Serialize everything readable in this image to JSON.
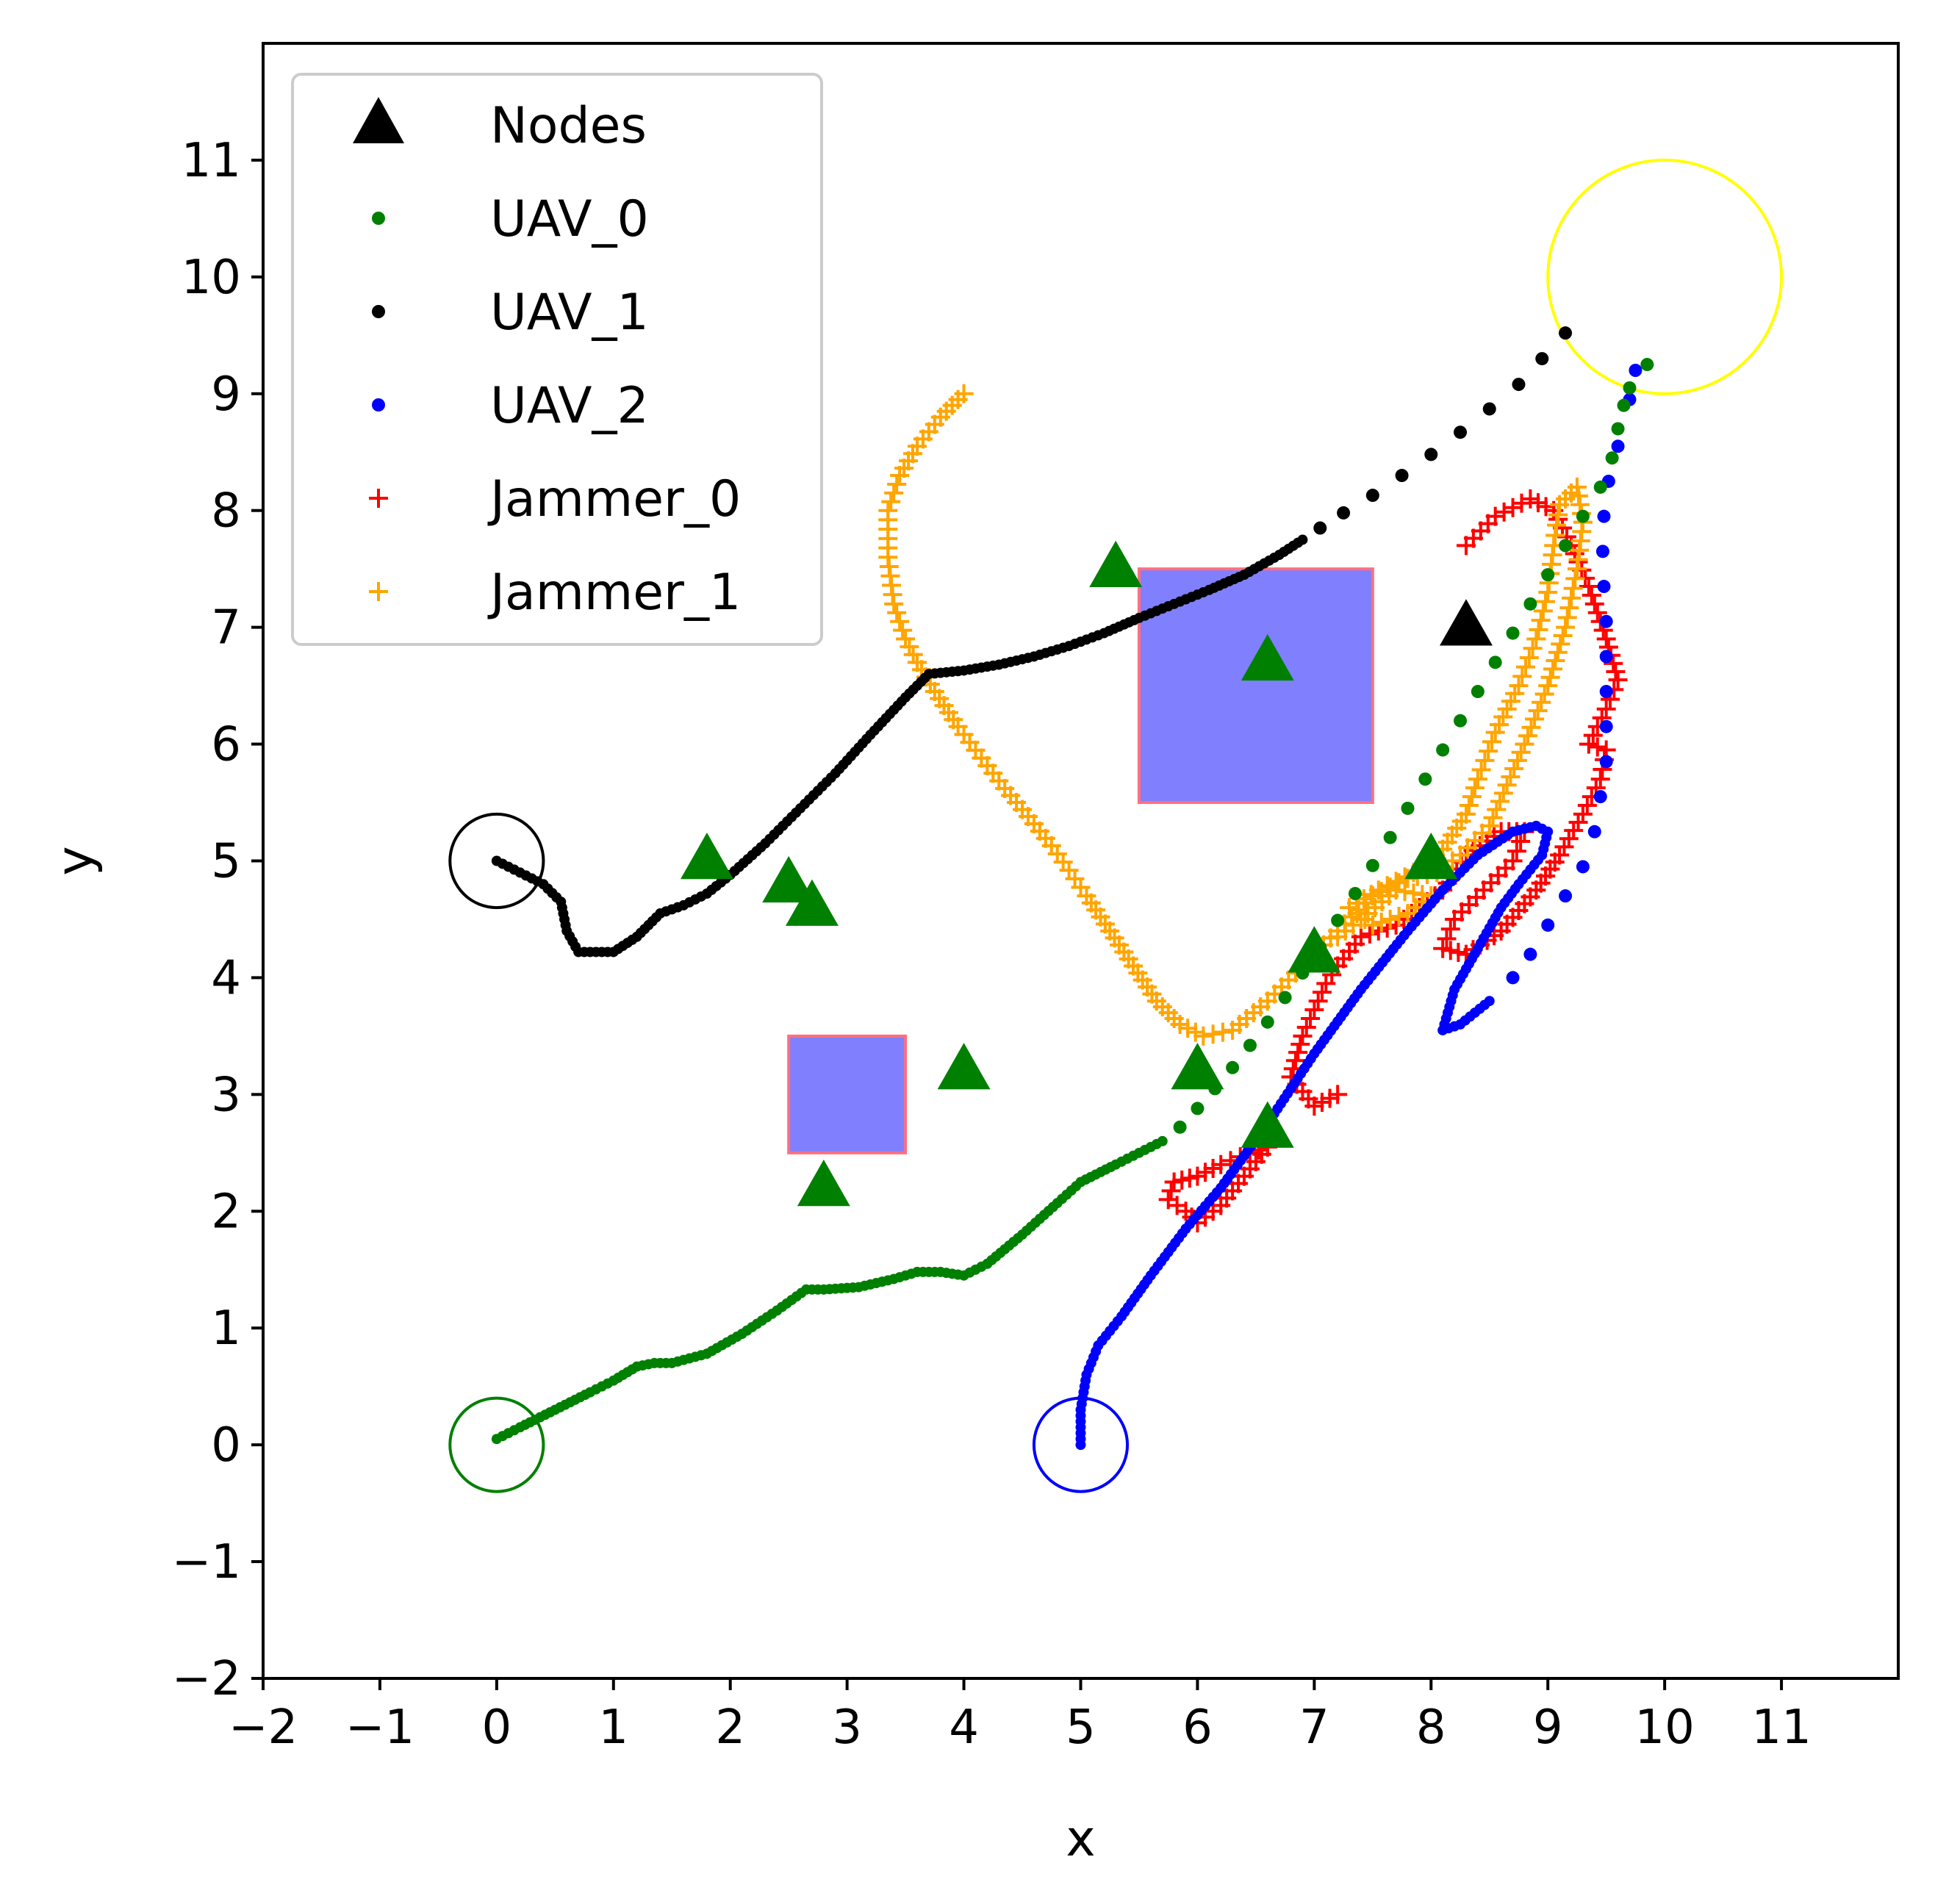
{
  "chart_data": {
    "type": "scatter",
    "title": "",
    "xlabel": "x",
    "ylabel": "y",
    "xlim": [
      -2,
      12
    ],
    "ylim": [
      -2,
      12
    ],
    "xticks": [
      -2,
      -1,
      0,
      1,
      2,
      3,
      4,
      5,
      6,
      7,
      8,
      9,
      10,
      11
    ],
    "yticks": [
      -2,
      -1,
      0,
      1,
      2,
      3,
      4,
      5,
      6,
      7,
      8,
      9,
      10,
      11
    ],
    "xtick_labels": [
      "−2",
      "−1",
      "0",
      "1",
      "2",
      "3",
      "4",
      "5",
      "6",
      "7",
      "8",
      "9",
      "10",
      "11"
    ],
    "ytick_labels": [
      "−2",
      "−1",
      "0",
      "1",
      "2",
      "3",
      "4",
      "5",
      "6",
      "7",
      "8",
      "9",
      "10",
      "11"
    ],
    "grid": false,
    "legend_position": "top-left",
    "legend": [
      {
        "label": "Nodes",
        "marker": "triangle",
        "color": "#000000"
      },
      {
        "label": "UAV_0",
        "marker": "dot",
        "color": "#008000"
      },
      {
        "label": "UAV_1",
        "marker": "dot",
        "color": "#000000"
      },
      {
        "label": "UAV_2",
        "marker": "dot",
        "color": "#0000ff"
      },
      {
        "label": "Jammer_0",
        "marker": "plus",
        "color": "#ff0000"
      },
      {
        "label": "Jammer_1",
        "marker": "plus",
        "color": "#ffa500"
      }
    ],
    "nodes": {
      "green": [
        [
          1.8,
          5.0
        ],
        [
          2.5,
          4.8
        ],
        [
          2.7,
          4.6
        ],
        [
          5.3,
          7.5
        ],
        [
          6.6,
          6.7
        ],
        [
          4.0,
          3.2
        ],
        [
          2.8,
          2.2
        ],
        [
          6.0,
          3.2
        ],
        [
          6.6,
          2.7
        ],
        [
          7.0,
          4.2
        ],
        [
          8.0,
          5.0
        ]
      ],
      "black": [
        [
          8.3,
          7.0
        ]
      ],
      "colors": {
        "green": "#008000",
        "black": "#000000"
      }
    },
    "obstacles": [
      {
        "x": [
          5.5,
          7.5
        ],
        "y": [
          5.5,
          7.5
        ],
        "fill": "#8080ff",
        "edge": "#ff6f7f"
      },
      {
        "x": [
          2.5,
          3.5
        ],
        "y": [
          2.5,
          3.5
        ],
        "fill": "#8080ff",
        "edge": "#ff6f7f"
      }
    ],
    "start_circles": [
      {
        "center": [
          0,
          5
        ],
        "radius": 0.4,
        "color": "#000000"
      },
      {
        "center": [
          0,
          0
        ],
        "radius": 0.4,
        "color": "#008000"
      },
      {
        "center": [
          5,
          0
        ],
        "radius": 0.4,
        "color": "#0000ff"
      }
    ],
    "goal_circle": {
      "center": [
        10,
        10
      ],
      "radius": 1.0,
      "color": "#ffff00"
    },
    "series": [
      {
        "name": "UAV_0",
        "marker": "dot",
        "color": "#008000",
        "path": [
          [
            0,
            0.05
          ],
          [
            0.2,
            0.15
          ],
          [
            0.5,
            0.3
          ],
          [
            0.8,
            0.45
          ],
          [
            1.0,
            0.55
          ],
          [
            1.2,
            0.67
          ],
          [
            1.35,
            0.7
          ],
          [
            1.5,
            0.7
          ],
          [
            1.8,
            0.78
          ],
          [
            2.1,
            0.95
          ],
          [
            2.4,
            1.15
          ],
          [
            2.65,
            1.33
          ],
          [
            2.8,
            1.33
          ],
          [
            3.1,
            1.35
          ],
          [
            3.4,
            1.42
          ],
          [
            3.6,
            1.48
          ],
          [
            3.8,
            1.48
          ],
          [
            4.0,
            1.45
          ],
          [
            4.2,
            1.55
          ],
          [
            4.5,
            1.8
          ],
          [
            4.8,
            2.07
          ],
          [
            5.0,
            2.25
          ],
          [
            5.3,
            2.4
          ],
          [
            5.5,
            2.5
          ],
          [
            5.7,
            2.6
          ]
        ],
        "sparse": [
          [
            5.85,
            2.72
          ],
          [
            6.0,
            2.88
          ],
          [
            6.15,
            3.05
          ],
          [
            6.3,
            3.23
          ],
          [
            6.45,
            3.42
          ],
          [
            6.6,
            3.62
          ],
          [
            6.75,
            3.83
          ],
          [
            6.9,
            4.04
          ],
          [
            7.05,
            4.26
          ],
          [
            7.2,
            4.49
          ],
          [
            7.35,
            4.72
          ],
          [
            7.5,
            4.96
          ],
          [
            7.65,
            5.2
          ],
          [
            7.8,
            5.45
          ],
          [
            7.95,
            5.7
          ],
          [
            8.1,
            5.95
          ],
          [
            8.25,
            6.2
          ],
          [
            8.4,
            6.45
          ],
          [
            8.55,
            6.7
          ],
          [
            8.7,
            6.95
          ],
          [
            8.85,
            7.2
          ],
          [
            9.0,
            7.45
          ],
          [
            9.15,
            7.7
          ],
          [
            9.3,
            7.95
          ],
          [
            9.45,
            8.2
          ],
          [
            9.55,
            8.45
          ],
          [
            9.6,
            8.7
          ],
          [
            9.65,
            8.9
          ],
          [
            9.7,
            9.05
          ],
          [
            9.85,
            9.25
          ]
        ]
      },
      {
        "name": "UAV_1",
        "marker": "dot",
        "color": "#000000",
        "path": [
          [
            0,
            5.0
          ],
          [
            0.2,
            4.9
          ],
          [
            0.4,
            4.8
          ],
          [
            0.55,
            4.65
          ],
          [
            0.6,
            4.4
          ],
          [
            0.7,
            4.22
          ],
          [
            1.0,
            4.22
          ],
          [
            1.2,
            4.35
          ],
          [
            1.4,
            4.55
          ],
          [
            1.6,
            4.62
          ],
          [
            1.8,
            4.72
          ],
          [
            2.0,
            4.88
          ],
          [
            2.3,
            5.15
          ],
          [
            2.6,
            5.45
          ],
          [
            2.9,
            5.75
          ],
          [
            3.2,
            6.08
          ],
          [
            3.5,
            6.4
          ],
          [
            3.7,
            6.6
          ],
          [
            4.0,
            6.63
          ],
          [
            4.3,
            6.68
          ],
          [
            4.6,
            6.75
          ],
          [
            4.9,
            6.84
          ],
          [
            5.2,
            6.95
          ],
          [
            5.5,
            7.08
          ],
          [
            5.8,
            7.2
          ],
          [
            6.1,
            7.32
          ],
          [
            6.4,
            7.45
          ],
          [
            6.7,
            7.62
          ],
          [
            6.9,
            7.75
          ]
        ],
        "sparse": [
          [
            7.05,
            7.85
          ],
          [
            7.25,
            7.98
          ],
          [
            7.5,
            8.13
          ],
          [
            7.75,
            8.3
          ],
          [
            8.0,
            8.48
          ],
          [
            8.25,
            8.67
          ],
          [
            8.5,
            8.87
          ],
          [
            8.75,
            9.08
          ],
          [
            8.95,
            9.3
          ],
          [
            9.15,
            9.52
          ]
        ]
      },
      {
        "name": "UAV_2",
        "marker": "dot",
        "color": "#0000ff",
        "path": [
          [
            5.0,
            0.0
          ],
          [
            5.0,
            0.3
          ],
          [
            5.05,
            0.6
          ],
          [
            5.15,
            0.85
          ],
          [
            5.35,
            1.1
          ],
          [
            5.6,
            1.45
          ],
          [
            5.9,
            1.85
          ],
          [
            6.2,
            2.2
          ],
          [
            6.6,
            2.75
          ],
          [
            7.0,
            3.35
          ],
          [
            7.4,
            3.9
          ],
          [
            7.8,
            4.4
          ],
          [
            8.1,
            4.75
          ],
          [
            8.4,
            5.05
          ],
          [
            8.7,
            5.25
          ],
          [
            8.9,
            5.3
          ],
          [
            9.0,
            5.25
          ],
          [
            8.95,
            5.05
          ],
          [
            8.75,
            4.8
          ],
          [
            8.6,
            4.6
          ],
          [
            8.4,
            4.25
          ],
          [
            8.2,
            3.9
          ],
          [
            8.1,
            3.55
          ],
          [
            8.25,
            3.6
          ],
          [
            8.5,
            3.8
          ]
        ],
        "sparse": [
          [
            8.7,
            4.0
          ],
          [
            8.85,
            4.2
          ],
          [
            9.0,
            4.45
          ],
          [
            9.15,
            4.7
          ],
          [
            9.3,
            4.95
          ],
          [
            9.4,
            5.25
          ],
          [
            9.45,
            5.55
          ],
          [
            9.5,
            5.85
          ],
          [
            9.5,
            6.15
          ],
          [
            9.5,
            6.45
          ],
          [
            9.5,
            6.75
          ],
          [
            9.5,
            7.05
          ],
          [
            9.48,
            7.35
          ],
          [
            9.47,
            7.65
          ],
          [
            9.48,
            7.95
          ],
          [
            9.52,
            8.25
          ],
          [
            9.6,
            8.55
          ],
          [
            9.7,
            8.95
          ],
          [
            9.75,
            9.2
          ]
        ]
      },
      {
        "name": "Jammer_0",
        "marker": "plus",
        "color": "#ff0000",
        "path": [
          [
            7.2,
            3.0
          ],
          [
            7.0,
            2.9
          ],
          [
            6.8,
            3.15
          ],
          [
            6.9,
            3.5
          ],
          [
            7.1,
            3.95
          ],
          [
            7.2,
            4.1
          ],
          [
            7.4,
            4.35
          ],
          [
            7.7,
            4.45
          ],
          [
            7.9,
            4.6
          ],
          [
            8.1,
            4.75
          ],
          [
            8.3,
            5.05
          ],
          [
            8.6,
            5.25
          ],
          [
            8.8,
            5.25
          ],
          [
            8.7,
            5.0
          ],
          [
            8.45,
            4.75
          ],
          [
            8.2,
            4.5
          ],
          [
            8.1,
            4.25
          ],
          [
            8.3,
            4.2
          ],
          [
            8.6,
            4.4
          ],
          [
            8.9,
            4.75
          ],
          [
            9.1,
            5.05
          ],
          [
            9.3,
            5.4
          ],
          [
            9.45,
            5.7
          ],
          [
            9.5,
            5.95
          ],
          [
            9.35,
            6.0
          ],
          [
            9.5,
            6.3
          ],
          [
            9.6,
            6.55
          ],
          [
            9.5,
            6.9
          ],
          [
            9.35,
            7.35
          ],
          [
            9.2,
            7.7
          ],
          [
            9.05,
            8.0
          ],
          [
            8.85,
            8.1
          ],
          [
            8.55,
            7.95
          ],
          [
            8.3,
            7.7
          ]
        ],
        "path2": [
          [
            6.6,
            2.55
          ],
          [
            6.4,
            2.3
          ],
          [
            6.2,
            2.05
          ],
          [
            6.0,
            1.9
          ],
          [
            5.9,
            2.0
          ],
          [
            5.75,
            2.1
          ],
          [
            5.8,
            2.25
          ],
          [
            6.0,
            2.3
          ],
          [
            6.2,
            2.4
          ],
          [
            6.45,
            2.5
          ],
          [
            6.6,
            2.55
          ]
        ]
      },
      {
        "name": "Jammer_1",
        "marker": "plus",
        "color": "#ffa500",
        "path": [
          [
            4.0,
            9.0
          ],
          [
            3.8,
            8.8
          ],
          [
            3.6,
            8.55
          ],
          [
            3.45,
            8.3
          ],
          [
            3.35,
            8.0
          ],
          [
            3.35,
            7.6
          ],
          [
            3.4,
            7.2
          ],
          [
            3.5,
            6.9
          ],
          [
            3.6,
            6.7
          ],
          [
            3.75,
            6.45
          ],
          [
            3.95,
            6.15
          ],
          [
            4.15,
            5.88
          ],
          [
            4.35,
            5.62
          ],
          [
            4.55,
            5.38
          ],
          [
            4.75,
            5.13
          ],
          [
            4.9,
            4.92
          ],
          [
            5.05,
            4.7
          ],
          [
            5.25,
            4.4
          ],
          [
            5.45,
            4.1
          ],
          [
            5.65,
            3.8
          ],
          [
            5.85,
            3.6
          ],
          [
            6.05,
            3.5
          ],
          [
            6.3,
            3.55
          ],
          [
            6.6,
            3.8
          ],
          [
            6.9,
            4.1
          ],
          [
            7.2,
            4.4
          ],
          [
            7.5,
            4.7
          ],
          [
            7.8,
            4.85
          ],
          [
            8.05,
            4.9
          ],
          [
            8.25,
            5.05
          ],
          [
            8.5,
            5.3
          ],
          [
            8.65,
            5.65
          ],
          [
            8.8,
            6.0
          ],
          [
            9.0,
            6.5
          ],
          [
            9.15,
            7.0
          ],
          [
            9.25,
            7.5
          ],
          [
            9.3,
            7.9
          ],
          [
            9.25,
            8.2
          ],
          [
            9.1,
            8.05
          ],
          [
            9.05,
            7.7
          ],
          [
            9.0,
            7.3
          ],
          [
            8.9,
            6.9
          ],
          [
            8.75,
            6.5
          ],
          [
            8.55,
            6.1
          ],
          [
            8.4,
            5.7
          ],
          [
            8.3,
            5.4
          ],
          [
            8.1,
            5.1
          ],
          [
            7.85,
            4.9
          ],
          [
            7.55,
            4.75
          ],
          [
            7.3,
            4.6
          ],
          [
            7.5,
            4.45
          ],
          [
            7.8,
            4.55
          ],
          [
            8.0,
            4.7
          ],
          [
            7.7,
            4.75
          ],
          [
            7.4,
            4.5
          ],
          [
            7.2,
            4.35
          ]
        ]
      }
    ]
  }
}
